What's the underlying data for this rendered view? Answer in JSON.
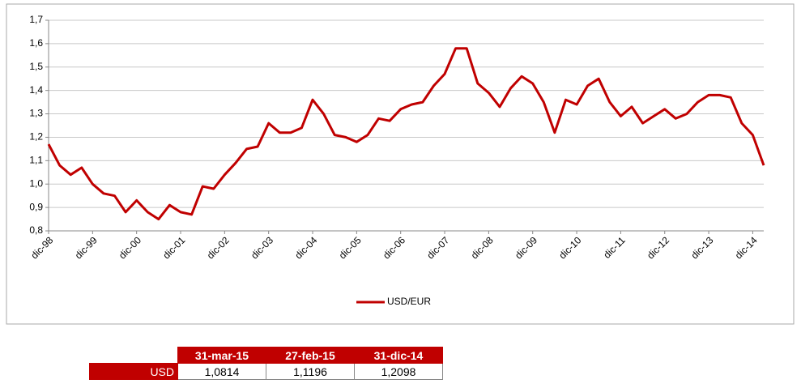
{
  "chart_data": {
    "type": "line",
    "categories": [
      "dic-98",
      null,
      null,
      null,
      "dic-99",
      null,
      null,
      null,
      "dic-00",
      null,
      null,
      null,
      "dic-01",
      null,
      null,
      null,
      "dic-02",
      null,
      null,
      null,
      "dic-03",
      null,
      null,
      null,
      "dic-04",
      null,
      null,
      null,
      "dic-05",
      null,
      null,
      null,
      "dic-06",
      null,
      null,
      null,
      "dic-07",
      null,
      null,
      null,
      "dic-08",
      null,
      null,
      null,
      "dic-09",
      null,
      null,
      null,
      "dic-10",
      null,
      null,
      null,
      "dic-11",
      null,
      null,
      null,
      "dic-12",
      null,
      null,
      null,
      "dic-13",
      null,
      null,
      null,
      "dic-14",
      null
    ],
    "series": [
      {
        "name": "USD/EUR",
        "color": "#c00000",
        "values": [
          1.17,
          1.08,
          1.04,
          1.07,
          1.0,
          0.96,
          0.95,
          0.88,
          0.93,
          0.88,
          0.85,
          0.91,
          0.88,
          0.87,
          0.99,
          0.98,
          1.04,
          1.09,
          1.15,
          1.16,
          1.26,
          1.22,
          1.22,
          1.24,
          1.36,
          1.3,
          1.21,
          1.2,
          1.18,
          1.21,
          1.28,
          1.27,
          1.32,
          1.34,
          1.35,
          1.42,
          1.47,
          1.58,
          1.58,
          1.43,
          1.39,
          1.33,
          1.41,
          1.46,
          1.43,
          1.35,
          1.22,
          1.36,
          1.34,
          1.42,
          1.45,
          1.35,
          1.29,
          1.33,
          1.26,
          1.29,
          1.32,
          1.28,
          1.3,
          1.35,
          1.38,
          1.38,
          1.37,
          1.26,
          1.21,
          1.08
        ]
      }
    ],
    "ylim": [
      0.8,
      1.7
    ],
    "yticks": [
      {
        "value": 0.8,
        "label": "0,8"
      },
      {
        "value": 0.9,
        "label": "0,9"
      },
      {
        "value": 1.0,
        "label": "1,0"
      },
      {
        "value": 1.1,
        "label": "1,1"
      },
      {
        "value": 1.2,
        "label": "1,2"
      },
      {
        "value": 1.3,
        "label": "1,3"
      },
      {
        "value": 1.4,
        "label": "1,4"
      },
      {
        "value": 1.5,
        "label": "1,5"
      },
      {
        "value": 1.6,
        "label": "1,6"
      },
      {
        "value": 1.7,
        "label": "1,7"
      }
    ],
    "grid": true,
    "legend": "bottom"
  },
  "table": {
    "header": [
      "31-mar-15",
      "27-feb-15",
      "31-dic-14"
    ],
    "rows": [
      [
        "USD",
        "1,0814",
        "1,1196",
        "1,2098"
      ]
    ]
  }
}
